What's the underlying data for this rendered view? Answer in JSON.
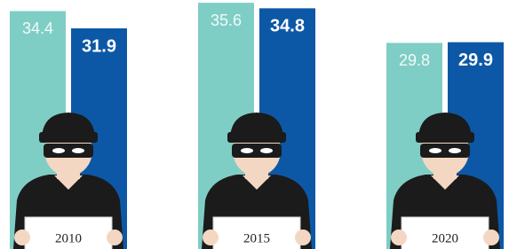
{
  "chart_data": {
    "type": "bar",
    "categories": [
      "2010",
      "2015",
      "2020"
    ],
    "series": [
      {
        "color": "#7fcec5",
        "values": [
          34.4,
          35.6,
          29.8
        ]
      },
      {
        "color": "#0d58a6",
        "values": [
          31.9,
          34.8,
          29.9
        ]
      }
    ],
    "ylim": [
      0,
      36
    ]
  }
}
